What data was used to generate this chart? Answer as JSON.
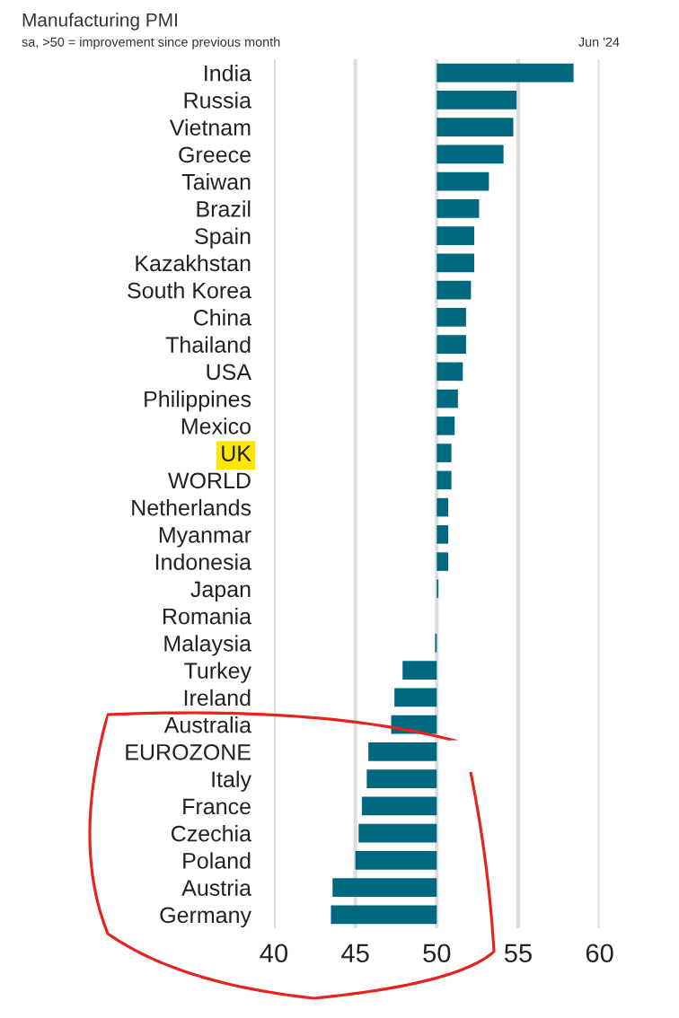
{
  "chart_data": {
    "type": "bar",
    "orientation": "horizontal",
    "title": "Manufacturing PMI",
    "subtitle": "sa, >50 = improvement since previous month",
    "annotations": [
      "Jun '24"
    ],
    "categories": [
      "India",
      "Russia",
      "Vietnam",
      "Greece",
      "Taiwan",
      "Brazil",
      "Spain",
      "Kazakhstan",
      "South Korea",
      "China",
      "Thailand",
      "USA",
      "Philippines",
      "Mexico",
      "UK",
      "WORLD",
      "Netherlands",
      "Myanmar",
      "Indonesia",
      "Japan",
      "Romania",
      "Malaysia",
      "Turkey",
      "Ireland",
      "Australia",
      "EUROZONE",
      "Italy",
      "France",
      "Czechia",
      "Poland",
      "Austria",
      "Germany"
    ],
    "base": [
      50,
      50,
      50,
      50,
      50,
      50,
      50,
      50,
      50,
      50,
      50,
      50,
      50,
      50,
      50,
      50,
      50,
      50,
      50,
      50,
      null,
      50,
      50,
      50,
      50,
      50,
      50,
      50,
      50,
      50,
      50,
      50
    ],
    "values": [
      8.4,
      4.9,
      4.7,
      4.1,
      3.2,
      2.6,
      2.3,
      2.3,
      2.1,
      1.8,
      1.8,
      1.6,
      1.3,
      1.1,
      0.9,
      0.9,
      0.7,
      0.7,
      0.7,
      0.1,
      null,
      -0.1,
      -2.1,
      -2.6,
      -2.8,
      -4.2,
      -4.3,
      -4.6,
      -4.8,
      -5.0,
      -6.4,
      -6.5
    ],
    "color": "#00687f",
    "xlim": [
      40,
      60
    ],
    "xticks": [
      40,
      45,
      50,
      55,
      60
    ],
    "grid": "x"
  }
}
